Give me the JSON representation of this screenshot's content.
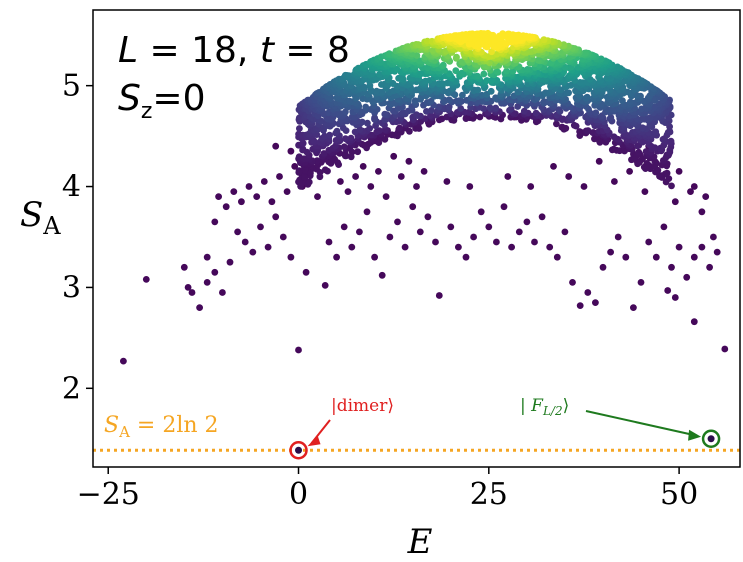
{
  "chart_data": {
    "type": "scatter",
    "title": "",
    "xlabel": "E",
    "ylabel_main": "S",
    "ylabel_sub": "A",
    "xlim": [
      -27,
      58
    ],
    "ylim": [
      1.22,
      5.75
    ],
    "xticks": [
      -25,
      0,
      25,
      50
    ],
    "xtick_labels": [
      "−25",
      "0",
      "25",
      "50"
    ],
    "yticks": [
      2,
      3,
      4,
      5
    ],
    "ytick_labels": [
      "2",
      "3",
      "4",
      "5"
    ],
    "grid": false,
    "legend": "none",
    "colormap": "viridis",
    "annotation_line1": {
      "L_label": "L",
      "L_value": " = 18, ",
      "t_label": "t",
      "t_value": " = 8"
    },
    "annotation_line2": {
      "S_label": "S",
      "S_sub": "z",
      "S_value": "=0"
    },
    "reference_line": {
      "y": 1.386,
      "color": "#f5a623",
      "label_S": "S",
      "label_sub": "A",
      "label_eq": " = 2ln 2"
    },
    "dimer_state": {
      "E": 0,
      "S": 1.386,
      "label": "|dimer⟩",
      "color": "#e02020"
    },
    "F_state": {
      "E": 54.2,
      "S": 1.5,
      "label_left": "| F",
      "label_sub": "L/2",
      "label_right": "⟩",
      "color": "#1e7a1e"
    },
    "scatter_points": [
      [
        -23,
        2.27
      ],
      [
        -20,
        3.08
      ],
      [
        0,
        2.38
      ],
      [
        56,
        2.39
      ],
      [
        18.5,
        2.92
      ],
      [
        52,
        2.66
      ],
      [
        -15,
        3.2
      ],
      [
        -14,
        2.95
      ],
      [
        -13,
        2.8
      ],
      [
        -12,
        3.05
      ],
      [
        -11,
        3.15
      ],
      [
        -10,
        2.95
      ],
      [
        -14.5,
        3.0
      ],
      [
        -9,
        3.25
      ],
      [
        -8,
        3.55
      ],
      [
        -12,
        3.3
      ],
      [
        -7,
        3.45
      ],
      [
        -6,
        3.35
      ],
      [
        -5,
        3.6
      ],
      [
        -4,
        3.4
      ],
      [
        -3,
        3.7
      ],
      [
        -2,
        3.5
      ],
      [
        -1,
        3.3
      ],
      [
        1,
        3.15
      ],
      [
        3.5,
        3.02
      ],
      [
        4,
        3.45
      ],
      [
        5,
        3.3
      ],
      [
        6,
        3.6
      ],
      [
        7,
        3.4
      ],
      [
        8,
        3.55
      ],
      [
        9,
        3.75
      ],
      [
        10,
        3.3
      ],
      [
        11,
        3.12
      ],
      [
        12,
        3.5
      ],
      [
        13,
        3.65
      ],
      [
        14,
        3.4
      ],
      [
        15,
        3.8
      ],
      [
        16,
        3.55
      ],
      [
        17,
        3.7
      ],
      [
        18,
        3.45
      ],
      [
        20,
        3.6
      ],
      [
        21,
        3.4
      ],
      [
        22,
        3.3
      ],
      [
        23,
        3.5
      ],
      [
        24,
        3.75
      ],
      [
        25,
        3.6
      ],
      [
        26,
        3.45
      ],
      [
        27,
        3.8
      ],
      [
        28,
        3.4
      ],
      [
        29,
        3.55
      ],
      [
        30,
        3.65
      ],
      [
        31,
        3.45
      ],
      [
        32,
        3.7
      ],
      [
        33,
        3.4
      ],
      [
        34,
        3.3
      ],
      [
        35,
        3.55
      ],
      [
        36,
        3.05
      ],
      [
        37,
        2.82
      ],
      [
        38,
        2.95
      ],
      [
        39,
        2.85
      ],
      [
        40,
        3.2
      ],
      [
        41,
        3.35
      ],
      [
        42,
        3.5
      ],
      [
        43,
        3.3
      ],
      [
        44,
        2.8
      ],
      [
        45,
        3.05
      ],
      [
        46,
        3.45
      ],
      [
        47,
        3.3
      ],
      [
        48,
        3.6
      ],
      [
        49,
        3.2
      ],
      [
        50,
        3.4
      ],
      [
        51,
        3.1
      ],
      [
        52,
        3.3
      ],
      [
        53,
        3.4
      ],
      [
        54,
        3.2
      ],
      [
        55,
        3.35
      ],
      [
        49.5,
        2.9
      ],
      [
        48.5,
        2.97
      ],
      [
        -9.5,
        3.8
      ],
      [
        -8.5,
        3.95
      ],
      [
        -7.5,
        3.85
      ],
      [
        -6.5,
        4.0
      ],
      [
        -5.5,
        3.9
      ],
      [
        -4.5,
        4.05
      ],
      [
        -3.5,
        3.85
      ],
      [
        -2.5,
        4.1
      ],
      [
        -1.5,
        3.95
      ],
      [
        -0.5,
        4.2
      ],
      [
        0.5,
        4.0
      ],
      [
        1.5,
        4.15
      ],
      [
        2.5,
        3.9
      ],
      [
        3,
        4.25
      ],
      [
        5.5,
        4.05
      ],
      [
        6.5,
        3.95
      ],
      [
        7.5,
        4.1
      ],
      [
        8.5,
        4.2
      ],
      [
        9.5,
        4.0
      ],
      [
        10.5,
        4.15
      ],
      [
        11.5,
        3.9
      ],
      [
        12.5,
        4.3
      ],
      [
        13.5,
        4.1
      ],
      [
        14.5,
        4.25
      ],
      [
        15.5,
        4.0
      ],
      [
        16.5,
        4.15
      ],
      [
        19.5,
        4.05
      ],
      [
        22.5,
        4.0
      ],
      [
        27.5,
        4.1
      ],
      [
        30.5,
        4.0
      ],
      [
        33.5,
        4.2
      ],
      [
        35.5,
        4.1
      ],
      [
        37.5,
        4.0
      ],
      [
        39.5,
        4.25
      ],
      [
        41.5,
        4.05
      ],
      [
        43.5,
        4.15
      ],
      [
        45.5,
        3.95
      ],
      [
        47.5,
        4.1
      ],
      [
        49.5,
        3.85
      ],
      [
        51.5,
        3.95
      ],
      [
        53,
        3.75
      ],
      [
        54.5,
        3.5
      ],
      [
        -1,
        4.35
      ],
      [
        2,
        4.45
      ],
      [
        4,
        4.35
      ],
      [
        -3,
        4.4
      ],
      [
        46,
        4.4
      ],
      [
        48,
        4.25
      ],
      [
        50,
        4.15
      ],
      [
        52,
        4.0
      ],
      [
        -11,
        3.65
      ],
      [
        -10.5,
        3.9
      ],
      [
        53.5,
        3.9
      ]
    ]
  }
}
